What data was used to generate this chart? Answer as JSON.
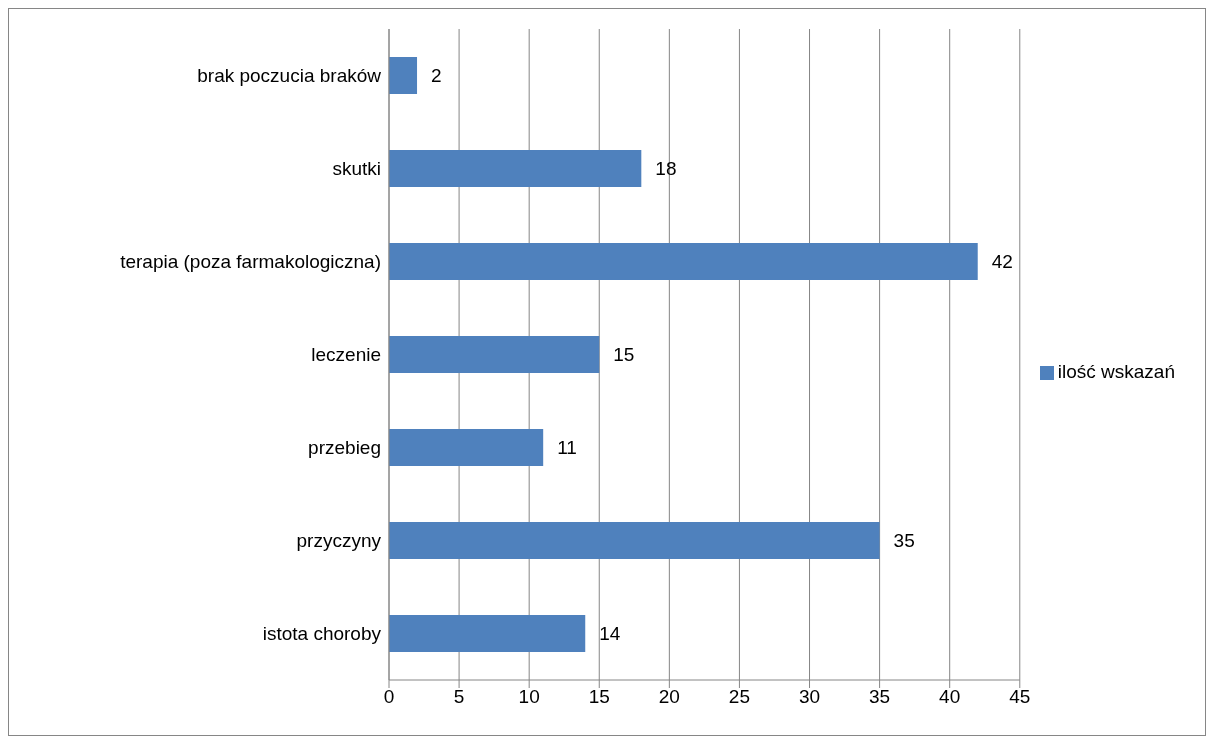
{
  "chart_data": {
    "type": "bar",
    "orientation": "horizontal",
    "categories": [
      "brak poczucia braków",
      "skutki",
      "terapia (poza farmakologiczna)",
      "leczenie",
      "przebieg",
      "przyczyny",
      "istota choroby"
    ],
    "series": [
      {
        "name": "ilość wskazań",
        "color": "#4f81bd",
        "values": [
          2,
          18,
          42,
          15,
          11,
          35,
          14
        ]
      }
    ],
    "xlim": [
      0,
      45
    ],
    "xticks": [
      0,
      5,
      10,
      15,
      20,
      25,
      30,
      35,
      40,
      45
    ],
    "grid": "x",
    "legend": "right",
    "data_labels": true
  }
}
